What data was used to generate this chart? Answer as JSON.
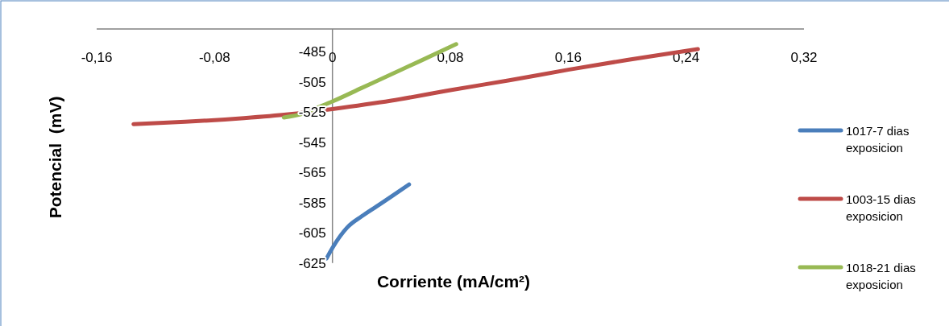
{
  "chart_data": {
    "type": "line",
    "xlabel": "Corriente (mA/cm²)",
    "ylabel": "Potencial  (mV)",
    "xlim": [
      -0.16,
      0.32
    ],
    "xticks": [
      {
        "value": -0.16,
        "label": "-0,16"
      },
      {
        "value": -0.08,
        "label": "-0,08"
      },
      {
        "value": 0,
        "label": "0"
      },
      {
        "value": 0.08,
        "label": "0,08"
      },
      {
        "value": 0.16,
        "label": "0,16"
      },
      {
        "value": 0.24,
        "label": "0,24"
      },
      {
        "value": 0.32,
        "label": "0,32"
      }
    ],
    "ylim": [
      -625,
      -470
    ],
    "yticks": [
      -625,
      -605,
      -585,
      -565,
      -545,
      -525,
      -505,
      -485
    ],
    "grid": false,
    "legend": "right",
    "marker": "none",
    "line_style": "solid",
    "series": [
      {
        "name": "1017-7 dias exposicion",
        "color": "#4a7ebb",
        "x": [
          -0.004,
          0,
          0.01,
          0.02,
          0.03,
          0.04,
          0.052
        ],
        "values": [
          -622,
          -615,
          -601.5,
          -594,
          -587.5,
          -581,
          -573
        ]
      },
      {
        "name": "1003-15 dias exposicion",
        "color": "#be4b48",
        "x": [
          -0.135,
          -0.1,
          -0.06,
          -0.03,
          0,
          0.04,
          0.08,
          0.12,
          0.16,
          0.2,
          0.248
        ],
        "values": [
          -533,
          -531.5,
          -529,
          -526.5,
          -523,
          -517.5,
          -510.5,
          -504,
          -497,
          -490.5,
          -483.3
        ]
      },
      {
        "name": "1018-21 dias exposicion",
        "color": "#98b954",
        "x": [
          -0.033,
          -0.02,
          -0.01,
          0,
          0.02,
          0.04,
          0.06,
          0.084
        ],
        "values": [
          -528.6,
          -526,
          -522,
          -518,
          -509,
          -500,
          -491,
          -480
        ]
      }
    ]
  }
}
